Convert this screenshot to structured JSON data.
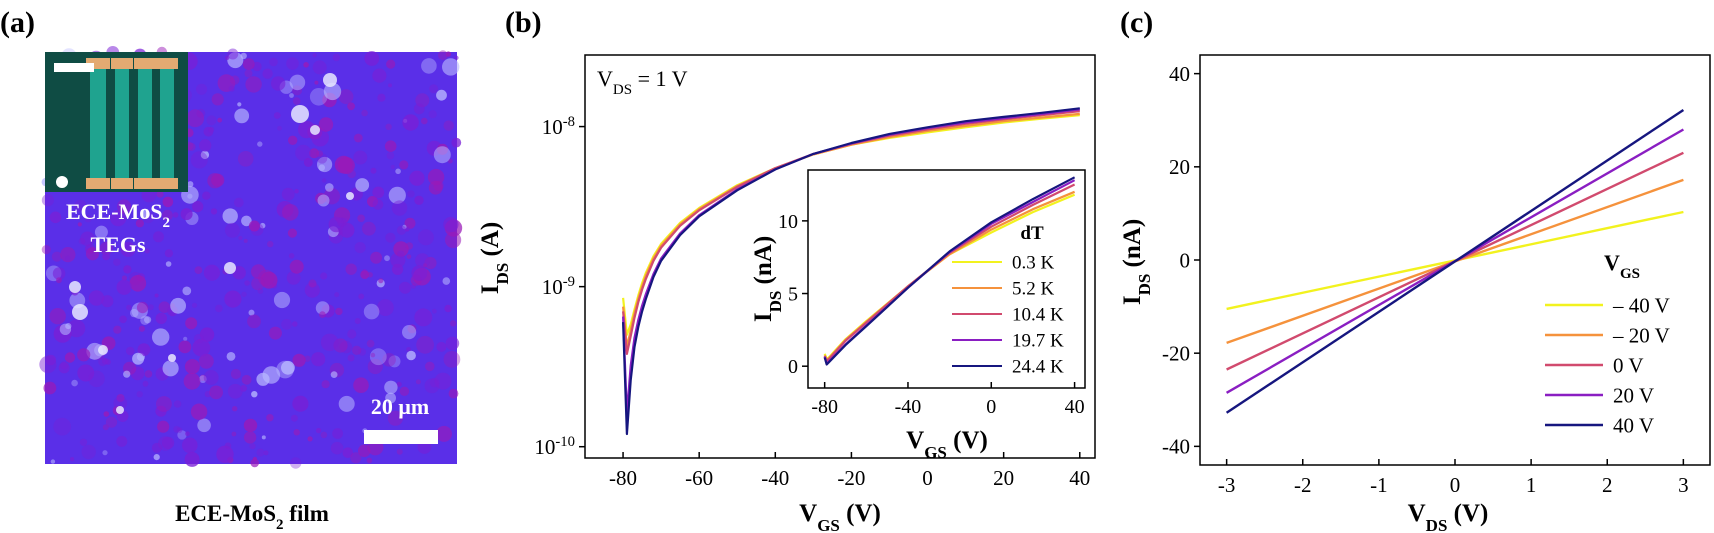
{
  "panels": {
    "a": {
      "label": "(a)",
      "inset_caption": {
        "main": "ECE-MoS",
        "sub": "2",
        "line2": "TEGs"
      },
      "scale_bar_text": "20 μm",
      "caption": {
        "main": "ECE-MoS",
        "sub": "2",
        "tail": " film"
      },
      "colors": {
        "film_base": "#5a2fe8",
        "film_violet": "#7a1fd6",
        "film_magenta": "#9a1ab8",
        "film_light": "#b8b8ff",
        "inset_bg": "#0f4c44",
        "inset_stripe": "#1fa38f",
        "contact": "#e3aa72"
      }
    },
    "b": {
      "label": "(b)",
      "annotation": {
        "main": "V",
        "sub": "DS",
        "tail": " = 1 V"
      }
    },
    "c": {
      "label": "(c)"
    }
  },
  "chart_data": [
    {
      "id": "b-main",
      "type": "line",
      "yscale": "log",
      "xlabel": {
        "main": "V",
        "sub": "GS",
        "tail": " (V)"
      },
      "ylabel": {
        "main": "I",
        "sub": "DS",
        "tail": " (A)"
      },
      "xlim": [
        -90,
        44
      ],
      "ylim": [
        8.5e-11,
        2.8e-08
      ],
      "xticks": [
        -80,
        -60,
        -40,
        -20,
        0,
        20,
        40
      ],
      "yticks": [
        {
          "value": 1e-10,
          "base": "10",
          "exp": "-10"
        },
        {
          "value": 1e-09,
          "base": "10",
          "exp": "-9"
        },
        {
          "value": 1e-08,
          "base": "10",
          "exp": "-8"
        }
      ],
      "x": [
        -80,
        -79,
        -78,
        -77,
        -76,
        -75,
        -74,
        -72,
        -70,
        -65,
        -60,
        -50,
        -40,
        -30,
        -20,
        -10,
        0,
        10,
        20,
        30,
        40
      ],
      "series": [
        {
          "name": "0.3 K",
          "color": "#f2f21e",
          "values": [
            8.5e-10,
            5e-10,
            5.8e-10,
            7.2e-10,
            8.8e-10,
            1.05e-09,
            1.22e-09,
            1.55e-09,
            1.85e-09,
            2.5e-09,
            3.1e-09,
            4.3e-09,
            5.5e-09,
            6.7e-09,
            7.7e-09,
            8.5e-09,
            9.2e-09,
            9.9e-09,
            1.06e-08,
            1.12e-08,
            1.18e-08
          ]
        },
        {
          "name": "5.2 K",
          "color": "#f5923c",
          "values": [
            7.5e-10,
            4.2e-10,
            5.3e-10,
            6.8e-10,
            8.4e-10,
            1e-09,
            1.17e-09,
            1.5e-09,
            1.8e-09,
            2.45e-09,
            3.05e-09,
            4.25e-09,
            5.5e-09,
            6.7e-09,
            7.7e-09,
            8.6e-09,
            9.4e-09,
            1.01e-08,
            1.08e-08,
            1.14e-08,
            1.2e-08
          ]
        },
        {
          "name": "10.4 K",
          "color": "#d14a6e",
          "values": [
            7e-10,
            3.8e-10,
            4.9e-10,
            6.4e-10,
            8e-10,
            9.6e-10,
            1.12e-09,
            1.45e-09,
            1.75e-09,
            2.4e-09,
            3e-09,
            4.2e-09,
            5.5e-09,
            6.75e-09,
            7.8e-09,
            8.8e-09,
            9.6e-09,
            1.04e-08,
            1.11e-08,
            1.18e-08,
            1.25e-08
          ]
        },
        {
          "name": "19.7 K",
          "color": "#8a1ec2",
          "values": [
            6.5e-10,
            1.6e-10,
            3.2e-10,
            4.8e-10,
            6.2e-10,
            7.6e-10,
            9e-10,
            1.2e-09,
            1.5e-09,
            2.15e-09,
            2.8e-09,
            4.05e-09,
            5.4e-09,
            6.75e-09,
            7.85e-09,
            8.9e-09,
            9.8e-09,
            1.06e-08,
            1.13e-08,
            1.2e-08,
            1.28e-08
          ]
        },
        {
          "name": "24.4 K",
          "color": "#16167f",
          "values": [
            6e-10,
            1.2e-10,
            2.6e-10,
            4.2e-10,
            5.6e-10,
            7e-10,
            8.4e-10,
            1.15e-09,
            1.45e-09,
            2.1e-09,
            2.75e-09,
            4e-09,
            5.4e-09,
            6.75e-09,
            7.9e-09,
            9e-09,
            9.9e-09,
            1.08e-08,
            1.15e-08,
            1.22e-08,
            1.3e-08
          ]
        }
      ]
    },
    {
      "id": "b-inset",
      "type": "line",
      "xlabel": {
        "main": "V",
        "sub": "GS",
        "tail": " (V)"
      },
      "ylabel": {
        "main": "I",
        "sub": "DS",
        "tail": " (nA)"
      },
      "xlim": [
        -88,
        45
      ],
      "ylim": [
        -1.5,
        13.5
      ],
      "xticks": [
        -80,
        -40,
        0,
        40
      ],
      "yticks": [
        0,
        5,
        10
      ],
      "legend": {
        "title": "dT",
        "location": "right"
      },
      "x": [
        -80,
        -79,
        -78,
        -70,
        -60,
        -40,
        -20,
        0,
        20,
        40
      ],
      "series": [
        {
          "name": "0.3 K",
          "color": "#f2f21e",
          "values": [
            0.85,
            0.5,
            0.6,
            1.85,
            3.1,
            5.5,
            7.7,
            9.2,
            10.6,
            11.8
          ]
        },
        {
          "name": "5.2 K",
          "color": "#f5923c",
          "values": [
            0.75,
            0.42,
            0.53,
            1.8,
            3.05,
            5.5,
            7.7,
            9.4,
            10.8,
            12.0
          ]
        },
        {
          "name": "10.4 K",
          "color": "#d14a6e",
          "values": [
            0.7,
            0.38,
            0.49,
            1.75,
            3.0,
            5.5,
            7.8,
            9.6,
            11.1,
            12.5
          ]
        },
        {
          "name": "19.7 K",
          "color": "#8a1ec2",
          "values": [
            0.65,
            0.16,
            0.32,
            1.5,
            2.8,
            5.4,
            7.85,
            9.8,
            11.3,
            12.8
          ]
        },
        {
          "name": "24.4 K",
          "color": "#16167f",
          "values": [
            0.6,
            0.12,
            0.26,
            1.45,
            2.75,
            5.4,
            7.9,
            9.9,
            11.5,
            13.0
          ]
        }
      ]
    },
    {
      "id": "c",
      "type": "line",
      "xlabel": {
        "main": "V",
        "sub": "DS",
        "tail": " (V)"
      },
      "ylabel": {
        "main": "I",
        "sub": "DS",
        "tail": " (nA)"
      },
      "xlim": [
        -3.35,
        3.35
      ],
      "ylim": [
        -44,
        44
      ],
      "xticks": [
        -3,
        -2,
        -1,
        0,
        1,
        2,
        3
      ],
      "yticks": [
        -40,
        -20,
        0,
        20,
        40
      ],
      "legend": {
        "title_main": "V",
        "title_sub": "GS",
        "location": "right"
      },
      "x": [
        -3,
        3
      ],
      "series": [
        {
          "name": "– 40 V",
          "color": "#f2f21e",
          "values": [
            -10.5,
            10.3
          ]
        },
        {
          "name": "– 20 V",
          "color": "#f5923c",
          "values": [
            -17.8,
            17.2
          ]
        },
        {
          "name": "0 V",
          "color": "#d14a6e",
          "values": [
            -23.5,
            23.0
          ]
        },
        {
          "name": "20 V",
          "color": "#8a1ec2",
          "values": [
            -28.5,
            28.0
          ]
        },
        {
          "name": "40 V",
          "color": "#16167f",
          "values": [
            -32.8,
            32.2
          ]
        }
      ]
    }
  ]
}
